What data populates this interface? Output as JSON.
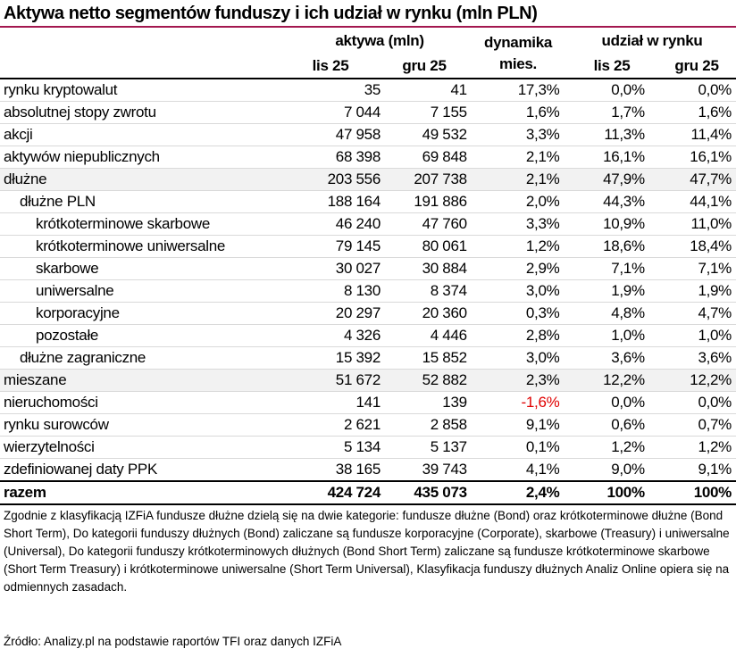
{
  "title": "Aktywa netto segmentów funduszy i ich udział w rynku (mln PLN)",
  "headers": {
    "assets": "aktywa (mln)",
    "dynamics_1": "dynamika",
    "dynamics_2": "mies.",
    "share": "udział w rynku",
    "lis": "lis 25",
    "gru": "gru 25",
    "lis2": "lis 25",
    "gru2": "gru 25"
  },
  "rows": [
    {
      "label": "rynku kryptowalut",
      "lis": "35",
      "gru": "41",
      "dyn": "17,3%",
      "sh_lis": "0,0%",
      "sh_gru": "0,0%"
    },
    {
      "label": "absolutnej stopy zwrotu",
      "lis": "7 044",
      "gru": "7 155",
      "dyn": "1,6%",
      "sh_lis": "1,7%",
      "sh_gru": "1,6%"
    },
    {
      "label": "akcji",
      "lis": "47 958",
      "gru": "49 532",
      "dyn": "3,3%",
      "sh_lis": "11,3%",
      "sh_gru": "11,4%"
    },
    {
      "label": "aktywów niepublicznych",
      "lis": "68 398",
      "gru": "69 848",
      "dyn": "2,1%",
      "sh_lis": "16,1%",
      "sh_gru": "16,1%"
    },
    {
      "label": "dłużne",
      "lis": "203 556",
      "gru": "207 738",
      "dyn": "2,1%",
      "sh_lis": "47,9%",
      "sh_gru": "47,7%"
    },
    {
      "label": "dłużne PLN",
      "lis": "188 164",
      "gru": "191 886",
      "dyn": "2,0%",
      "sh_lis": "44,3%",
      "sh_gru": "44,1%"
    },
    {
      "label": "krótkoterminowe skarbowe",
      "lis": "46 240",
      "gru": "47 760",
      "dyn": "3,3%",
      "sh_lis": "10,9%",
      "sh_gru": "11,0%"
    },
    {
      "label": "krótkoterminowe uniwersalne",
      "lis": "79 145",
      "gru": "80 061",
      "dyn": "1,2%",
      "sh_lis": "18,6%",
      "sh_gru": "18,4%"
    },
    {
      "label": "skarbowe",
      "lis": "30 027",
      "gru": "30 884",
      "dyn": "2,9%",
      "sh_lis": "7,1%",
      "sh_gru": "7,1%"
    },
    {
      "label": "uniwersalne",
      "lis": "8 130",
      "gru": "8 374",
      "dyn": "3,0%",
      "sh_lis": "1,9%",
      "sh_gru": "1,9%"
    },
    {
      "label": "korporacyjne",
      "lis": "20 297",
      "gru": "20 360",
      "dyn": "0,3%",
      "sh_lis": "4,8%",
      "sh_gru": "4,7%"
    },
    {
      "label": "pozostałe",
      "lis": "4 326",
      "gru": "4 446",
      "dyn": "2,8%",
      "sh_lis": "1,0%",
      "sh_gru": "1,0%"
    },
    {
      "label": "dłużne zagraniczne",
      "lis": "15 392",
      "gru": "15 852",
      "dyn": "3,0%",
      "sh_lis": "3,6%",
      "sh_gru": "3,6%"
    },
    {
      "label": "mieszane",
      "lis": "51 672",
      "gru": "52 882",
      "dyn": "2,3%",
      "sh_lis": "12,2%",
      "sh_gru": "12,2%"
    },
    {
      "label": "nieruchomości",
      "lis": "141",
      "gru": "139",
      "dyn": "-1,6%",
      "sh_lis": "0,0%",
      "sh_gru": "0,0%"
    },
    {
      "label": "rynku surowców",
      "lis": "2 621",
      "gru": "2 858",
      "dyn": "9,1%",
      "sh_lis": "0,6%",
      "sh_gru": "0,7%"
    },
    {
      "label": "wierzytelności",
      "lis": "5 134",
      "gru": "5 137",
      "dyn": "0,1%",
      "sh_lis": "1,2%",
      "sh_gru": "1,2%"
    },
    {
      "label": "zdefiniowanej daty PPK",
      "lis": "38 165",
      "gru": "39 743",
      "dyn": "4,1%",
      "sh_lis": "9,0%",
      "sh_gru": "9,1%"
    },
    {
      "label": "razem",
      "lis": "424 724",
      "gru": "435 073",
      "dyn": "2,4%",
      "sh_lis": "100%",
      "sh_gru": "100%"
    }
  ],
  "note": "Zgodnie z klasyfikacją IZFiA fundusze dłużne dzielą się na dwie kategorie: fundusze dłużne (Bond) oraz krótkoterminowe dłużne (Bond Short Term), Do kategorii funduszy dłużnych (Bond) zaliczane są fundusze korporacyjne (Corporate), skarbowe (Treasury) i uniwersalne (Universal), Do kategorii funduszy krótkoterminowych dłużnych (Bond Short Term) zaliczane są fundusze krótkoterminowe skarbowe (Short Term Treasury) i krótkoterminowe uniwersalne (Short Term Universal), Klasyfikacja funduszy dłużnych Analiz Online opiera się na odmiennych zasadach.",
  "source": "Źródło: Analizy.pl na podstawie raportów TFI oraz danych IZFiA",
  "colors": {
    "title_rule": "#a3174f",
    "negative": "#e00000",
    "shade": "#f2f2f2"
  }
}
